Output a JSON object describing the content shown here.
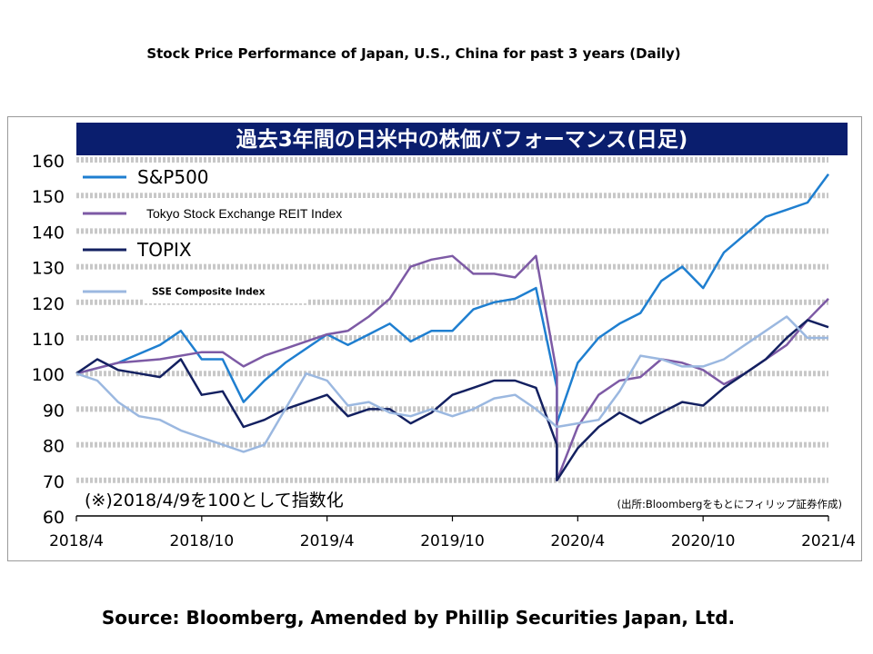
{
  "slide_title": "Stock Price Performance of Japan, U.S., China for past 3 years (Daily)",
  "source_text": "Source: Bloomberg, Amended by Phillip Securities Japan, Ltd.",
  "chart_data": {
    "type": "line",
    "title": "過去3年間の日米中の株価パフォーマンス(日足)",
    "note": "(※)2018/4/9を100として指数化",
    "credit": "(出所:Bloombergをもとにフィリップ証券作成)",
    "title_bar_color": "#0a1e6e",
    "grid": true,
    "grid_style": "dashed",
    "legend_position": "top-left",
    "ylim": [
      60,
      160
    ],
    "yticks": [
      60,
      70,
      80,
      90,
      100,
      110,
      120,
      130,
      140,
      150,
      160
    ],
    "xlim": [
      "2018-04",
      "2021-04"
    ],
    "xticks": [
      "2018/4",
      "2018/10",
      "2019/4",
      "2019/10",
      "2020/4",
      "2020/10",
      "2021/4"
    ],
    "series": [
      {
        "name": "S&P500",
        "color": "#1f7fd0",
        "x": [
          "2018-04",
          "2018-06",
          "2018-08",
          "2018-09",
          "2018-10",
          "2018-11",
          "2018-12",
          "2019-01",
          "2019-02",
          "2019-04",
          "2019-05",
          "2019-06",
          "2019-07",
          "2019-08",
          "2019-09",
          "2019-10",
          "2019-11",
          "2019-12",
          "2020-01",
          "2020-02",
          "2020-03",
          "2020-03",
          "2020-04",
          "2020-05",
          "2020-06",
          "2020-07",
          "2020-08",
          "2020-09",
          "2020-10",
          "2020-11",
          "2020-12",
          "2021-01",
          "2021-02",
          "2021-03",
          "2021-04"
        ],
        "values": [
          100,
          103,
          108,
          112,
          104,
          104,
          92,
          98,
          103,
          111,
          108,
          111,
          114,
          109,
          112,
          112,
          118,
          120,
          121,
          124,
          96,
          86,
          103,
          110,
          114,
          117,
          126,
          130,
          124,
          134,
          139,
          144,
          146,
          148,
          156
        ]
      },
      {
        "name": "Tokyo Stock Exchange REIT Index",
        "color": "#7d5aa5",
        "x": [
          "2018-04",
          "2018-06",
          "2018-08",
          "2018-10",
          "2018-11",
          "2018-12",
          "2019-01",
          "2019-02",
          "2019-04",
          "2019-05",
          "2019-06",
          "2019-07",
          "2019-08",
          "2019-09",
          "2019-10",
          "2019-11",
          "2019-12",
          "2020-01",
          "2020-02",
          "2020-03",
          "2020-03",
          "2020-04",
          "2020-05",
          "2020-06",
          "2020-07",
          "2020-08",
          "2020-09",
          "2020-10",
          "2020-11",
          "2020-12",
          "2021-01",
          "2021-02",
          "2021-03",
          "2021-04"
        ],
        "values": [
          100,
          103,
          104,
          106,
          106,
          102,
          105,
          107,
          111,
          112,
          116,
          121,
          130,
          132,
          133,
          128,
          128,
          127,
          133,
          100,
          70,
          85,
          94,
          98,
          99,
          104,
          103,
          101,
          97,
          100,
          104,
          108,
          115,
          121
        ]
      },
      {
        "name": "TOPIX",
        "color": "#132060",
        "x": [
          "2018-04",
          "2018-05",
          "2018-06",
          "2018-07",
          "2018-08",
          "2018-09",
          "2018-10",
          "2018-11",
          "2018-12",
          "2019-01",
          "2019-02",
          "2019-04",
          "2019-05",
          "2019-06",
          "2019-07",
          "2019-08",
          "2019-09",
          "2019-10",
          "2019-11",
          "2019-12",
          "2020-01",
          "2020-02",
          "2020-03",
          "2020-03",
          "2020-04",
          "2020-05",
          "2020-06",
          "2020-07",
          "2020-08",
          "2020-09",
          "2020-10",
          "2020-11",
          "2020-12",
          "2021-01",
          "2021-02",
          "2021-03",
          "2021-04"
        ],
        "values": [
          100,
          104,
          101,
          100,
          99,
          104,
          94,
          95,
          85,
          87,
          90,
          94,
          88,
          90,
          90,
          86,
          89,
          94,
          96,
          98,
          98,
          96,
          80,
          70,
          79,
          85,
          89,
          86,
          89,
          92,
          91,
          96,
          100,
          104,
          110,
          115,
          113
        ]
      },
      {
        "name": "SSE Composite Index",
        "color": "#9bb8e0",
        "x": [
          "2018-04",
          "2018-05",
          "2018-06",
          "2018-07",
          "2018-08",
          "2018-09",
          "2018-10",
          "2018-11",
          "2018-12",
          "2019-01",
          "2019-02",
          "2019-03",
          "2019-04",
          "2019-05",
          "2019-06",
          "2019-07",
          "2019-08",
          "2019-09",
          "2019-10",
          "2019-11",
          "2019-12",
          "2020-01",
          "2020-02",
          "2020-03",
          "2020-04",
          "2020-05",
          "2020-06",
          "2020-07",
          "2020-08",
          "2020-09",
          "2020-10",
          "2020-11",
          "2020-12",
          "2021-01",
          "2021-02",
          "2021-03",
          "2021-04"
        ],
        "values": [
          100,
          98,
          92,
          88,
          87,
          84,
          82,
          80,
          78,
          80,
          90,
          100,
          98,
          91,
          92,
          89,
          88,
          90,
          88,
          90,
          93,
          94,
          90,
          85,
          86,
          87,
          95,
          105,
          104,
          102,
          102,
          104,
          108,
          112,
          116,
          110,
          110
        ]
      }
    ]
  }
}
